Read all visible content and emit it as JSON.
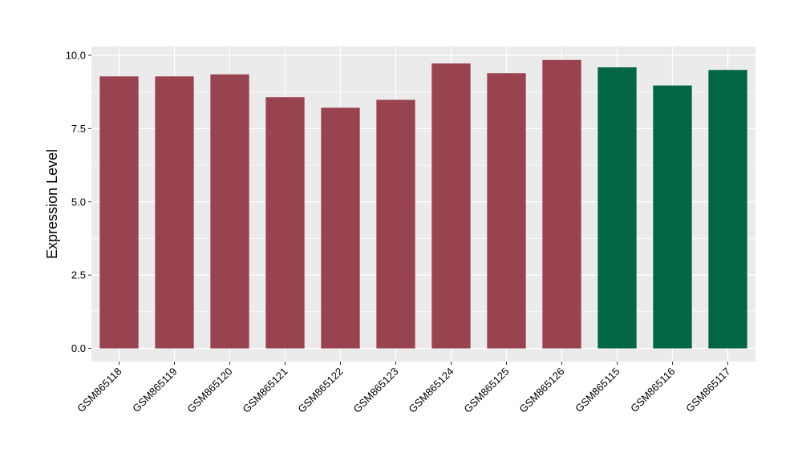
{
  "chart_data": {
    "type": "bar",
    "ylabel": "Expression Level",
    "xlabel": "",
    "ylim": [
      -0.45,
      10.3
    ],
    "yticks": [
      0.0,
      2.5,
      5.0,
      7.5,
      10.0
    ],
    "ytick_labels": [
      "0.0",
      "2.5",
      "5.0",
      "7.5",
      "10.0"
    ],
    "grid": true,
    "legend": "none",
    "categories": [
      "GSM865118",
      "GSM865119",
      "GSM865120",
      "GSM865121",
      "GSM865122",
      "GSM865123",
      "GSM865124",
      "GSM865125",
      "GSM865126",
      "GSM865115",
      "GSM865116",
      "GSM865117"
    ],
    "values": [
      9.28,
      9.28,
      9.35,
      8.57,
      8.21,
      8.48,
      9.72,
      9.39,
      9.84,
      9.59,
      8.97,
      9.5
    ],
    "colors": [
      "#994350",
      "#994350",
      "#994350",
      "#994350",
      "#994350",
      "#994350",
      "#994350",
      "#994350",
      "#994350",
      "#006644",
      "#006644",
      "#006644"
    ],
    "panel_color": "#EBEBEB",
    "grid_color": "#FFFFFF"
  }
}
